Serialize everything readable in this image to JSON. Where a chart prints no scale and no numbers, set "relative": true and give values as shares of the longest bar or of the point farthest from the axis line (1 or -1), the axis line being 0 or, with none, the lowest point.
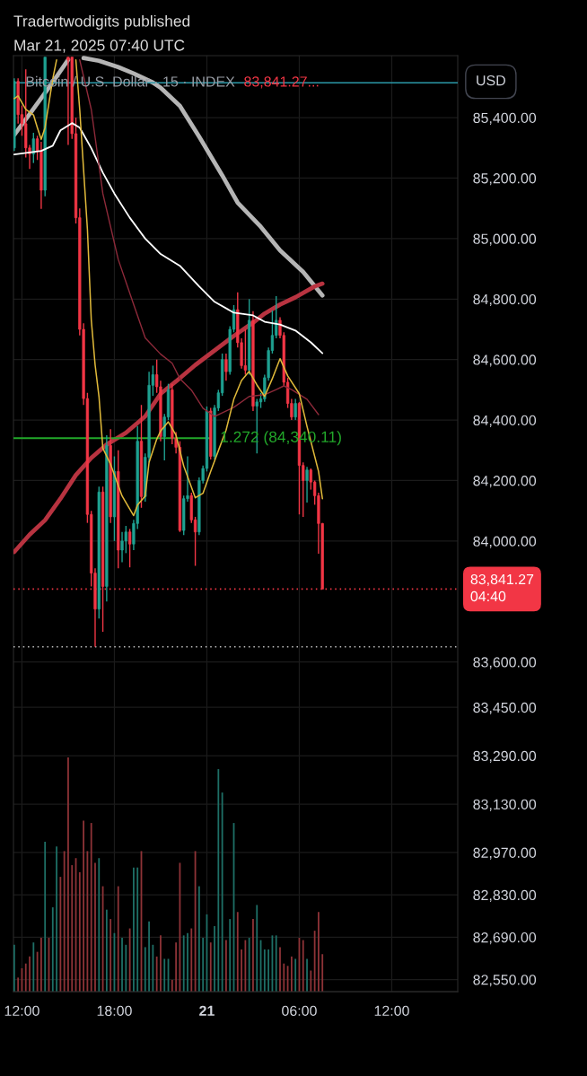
{
  "chart_data": [
    {
      "type": "candlestick",
      "title": "Tradertwodigits published",
      "subtitle": "Mar 21, 2025 07:40 UTC",
      "x": [
        "2025-03-20T11:30",
        "2025-03-20T11:45",
        "2025-03-20T12:00",
        "2025-03-20T12:15",
        "2025-03-20T12:30",
        "2025-03-20T12:45",
        "2025-03-20T13:00",
        "2025-03-20T13:15",
        "2025-03-20T13:30",
        "2025-03-20T15:00",
        "2025-03-20T15:15",
        "2025-03-20T15:30",
        "2025-03-20T15:45",
        "2025-03-20T16:00",
        "2025-03-20T16:15",
        "2025-03-20T16:30",
        "2025-03-20T16:45",
        "2025-03-20T17:00",
        "2025-03-20T17:15",
        "2025-03-20T17:30",
        "2025-03-20T17:45",
        "2025-03-20T18:00",
        "2025-03-20T18:15",
        "2025-03-20T18:30",
        "2025-03-20T18:45",
        "2025-03-20T19:00",
        "2025-03-20T19:15",
        "2025-03-20T19:30",
        "2025-03-20T19:45",
        "2025-03-20T20:00",
        "2025-03-20T20:15",
        "2025-03-20T20:30",
        "2025-03-20T20:45",
        "2025-03-20T21:00",
        "2025-03-20T21:15",
        "2025-03-20T21:30",
        "2025-03-20T21:45",
        "2025-03-20T22:00",
        "2025-03-20T22:15",
        "2025-03-20T22:30",
        "2025-03-20T22:45",
        "2025-03-20T23:00",
        "2025-03-20T23:15",
        "2025-03-20T23:30",
        "2025-03-20T23:45",
        "2025-03-21T00:00",
        "2025-03-21T00:15",
        "2025-03-21T00:30",
        "2025-03-21T00:45",
        "2025-03-21T01:00",
        "2025-03-21T01:15",
        "2025-03-21T01:30",
        "2025-03-21T01:45",
        "2025-03-21T02:00",
        "2025-03-21T02:15",
        "2025-03-21T02:30",
        "2025-03-21T02:45",
        "2025-03-21T03:00",
        "2025-03-21T03:15",
        "2025-03-21T03:30",
        "2025-03-21T03:45",
        "2025-03-21T04:00",
        "2025-03-21T04:15",
        "2025-03-21T04:30",
        "2025-03-21T04:45",
        "2025-03-21T05:00",
        "2025-03-21T05:15",
        "2025-03-21T05:30",
        "2025-03-21T05:45",
        "2025-03-21T06:00",
        "2025-03-21T06:15",
        "2025-03-21T06:30",
        "2025-03-21T06:45",
        "2025-03-21T07:00",
        "2025-03-21T07:15",
        "2025-03-21T07:30"
      ],
      "ohlc": [
        [
          85300,
          85530,
          85290,
          85520
        ],
        [
          85520,
          85530,
          85380,
          85410
        ],
        [
          85410,
          85440,
          85340,
          85380
        ],
        [
          85380,
          85560,
          85268,
          85300
        ],
        [
          85300,
          85310,
          85230,
          85280
        ],
        [
          85280,
          85350,
          85250,
          85330
        ],
        [
          85330,
          85340,
          85260,
          85290
        ],
        [
          85290,
          85320,
          85098,
          85160
        ],
        [
          85160,
          85600,
          85140,
          85600
        ],
        [
          85600,
          85600,
          85310,
          85590
        ],
        [
          85600,
          85600,
          85330,
          85347
        ],
        [
          85347,
          85400,
          85050,
          85069
        ],
        [
          85069,
          85100,
          84680,
          84700
        ],
        [
          84700,
          84720,
          84450,
          84471
        ],
        [
          84471,
          84490,
          84060,
          84088
        ],
        [
          84088,
          84100,
          83850,
          83894
        ],
        [
          83894,
          83910,
          83650,
          83775
        ],
        [
          83775,
          84180,
          83744,
          84162
        ],
        [
          84162,
          84180,
          83700,
          83850
        ],
        [
          83850,
          84350,
          83800,
          84316
        ],
        [
          84316,
          84370,
          84060,
          84080
        ],
        [
          84080,
          84280,
          84000,
          84230
        ],
        [
          84230,
          84300,
          83910,
          83970
        ],
        [
          83970,
          84030,
          83930,
          84000
        ],
        [
          84000,
          84050,
          83960,
          84030
        ],
        [
          84030,
          84040,
          83913,
          83990
        ],
        [
          83990,
          84070,
          83970,
          84058
        ],
        [
          84058,
          84380,
          84040,
          84330
        ],
        [
          84330,
          84450,
          84110,
          84147
        ],
        [
          84147,
          84290,
          84130,
          84277
        ],
        [
          84277,
          84560,
          84260,
          84515
        ],
        [
          84515,
          84580,
          84480,
          84550
        ],
        [
          84550,
          84600,
          84490,
          84510
        ],
        [
          84510,
          84530,
          84330,
          84345
        ],
        [
          84345,
          84420,
          84267,
          84410
        ],
        [
          84410,
          84520,
          84400,
          84500
        ],
        [
          84500,
          84520,
          84320,
          84340
        ],
        [
          84340,
          84360,
          84290,
          84310
        ],
        [
          84310,
          84330,
          84030,
          84035
        ],
        [
          84035,
          84150,
          84020,
          84140
        ],
        [
          84140,
          84280,
          84130,
          84150
        ],
        [
          84150,
          84160,
          84060,
          84070
        ],
        [
          84070,
          84080,
          83918,
          84030
        ],
        [
          84030,
          84210,
          84020,
          84200
        ],
        [
          84200,
          84250,
          84190,
          84240
        ],
        [
          84240,
          84445,
          84230,
          84430
        ],
        [
          84430,
          84440,
          84270,
          84280
        ],
        [
          84280,
          84450,
          84270,
          84440
        ],
        [
          84440,
          84500,
          84430,
          84490
        ],
        [
          84490,
          84620,
          84480,
          84600
        ],
        [
          84600,
          84620,
          84530,
          84560
        ],
        [
          84560,
          84710,
          84550,
          84700
        ],
        [
          84700,
          84780,
          84690,
          84765
        ],
        [
          84765,
          84822,
          84640,
          84656
        ],
        [
          84656,
          84670,
          84570,
          84580
        ],
        [
          84580,
          84700,
          84550,
          84565
        ],
        [
          84565,
          84800,
          84550,
          84730
        ],
        [
          84730,
          84760,
          84430,
          84446
        ],
        [
          84446,
          84470,
          84290,
          84460
        ],
        [
          84460,
          84490,
          84440,
          84470
        ],
        [
          84470,
          84550,
          84460,
          84540
        ],
        [
          84540,
          84640,
          84530,
          84630
        ],
        [
          84630,
          84762,
          84620,
          84680
        ],
        [
          84680,
          84810,
          84670,
          84730
        ],
        [
          84730,
          84740,
          84670,
          84680
        ],
        [
          84680,
          84690,
          84510,
          84525
        ],
        [
          84525,
          84540,
          84440,
          84455
        ],
        [
          84455,
          84470,
          84400,
          84410
        ],
        [
          84410,
          84470,
          84400,
          84455
        ],
        [
          84455,
          84460,
          84088,
          84250
        ],
        [
          84250,
          84260,
          84080,
          84200
        ],
        [
          84200,
          84245,
          84127,
          84235
        ],
        [
          84235,
          84240,
          84170,
          84195
        ],
        [
          84195,
          84200,
          84120,
          84150
        ],
        [
          84150,
          84160,
          83958,
          84058
        ],
        [
          84058,
          84060,
          83841.27,
          83841.27
        ]
      ],
      "colors": [
        "#1fa191",
        "#f23645",
        "#f23645",
        "#f23645",
        "#f23645",
        "#1fa191",
        "#f23645",
        "#f23645",
        "#1fa191",
        "#f23645",
        "#f23645",
        "#f23645",
        "#f23645",
        "#f23645",
        "#f23645",
        "#f23645",
        "#f23645",
        "#1fa191",
        "#f23645",
        "#1fa191",
        "#f23645",
        "#1fa191",
        "#f23645",
        "#1fa191",
        "#1fa191",
        "#f23645",
        "#1fa191",
        "#1fa191",
        "#f23645",
        "#1fa191",
        "#1fa191",
        "#1fa191",
        "#f23645",
        "#f23645",
        "#1fa191",
        "#1fa191",
        "#f23645",
        "#f23645",
        "#f23645",
        "#1fa191",
        "#1fa191",
        "#f23645",
        "#f23645",
        "#1fa191",
        "#1fa191",
        "#1fa191",
        "#f23645",
        "#1fa191",
        "#1fa191",
        "#1fa191",
        "#f23645",
        "#1fa191",
        "#1fa191",
        "#f23645",
        "#f23645",
        "#f23645",
        "#1fa191",
        "#f23645",
        "#1fa191",
        "#1fa191",
        "#1fa191",
        "#1fa191",
        "#1fa191",
        "#1fa191",
        "#f23645",
        "#f23645",
        "#f23645",
        "#f23645",
        "#1fa191",
        "#f23645",
        "#f23645",
        "#1fa191",
        "#f23645",
        "#f23645",
        "#f23645",
        "#f23645"
      ],
      "series": [
        {
          "type": "line",
          "color": "#b5b5b5",
          "x": [
            "2025-03-20T11:30",
            "2025-03-20T12:30",
            "2025-03-20T13:45",
            "2025-03-20T15:00",
            "2025-03-20T15:30",
            "2025-03-20T16:00",
            "2025-03-20T17:00",
            "2025-03-20T18:15",
            "2025-03-20T19:15",
            "2025-03-20T20:30",
            "2025-03-20T21:00",
            "2025-03-20T22:15",
            "2025-03-20T23:30",
            "2025-03-21T01:00",
            "2025-03-21T02:00",
            "2025-03-21T03:30",
            "2025-03-21T04:45",
            "2025-03-21T06:15",
            "2025-03-21T07:30"
          ],
          "values": [
            85343,
            85412,
            85499,
            85591,
            null,
            85597,
            85588,
            85567,
            85546,
            85516,
            85499,
            85439,
            85337,
            85209,
            85119,
            85039,
            84961,
            84890,
            84812
          ]
        },
        {
          "type": "line",
          "color": "#ffffff",
          "x": [
            "2025-03-20T11:30",
            "2025-03-20T13:15",
            "2025-03-20T14:00",
            "2025-03-20T14:30",
            "2025-03-20T15:15",
            "2025-03-20T15:45",
            "2025-03-20T16:30",
            "2025-03-20T17:15",
            "2025-03-20T18:00",
            "2025-03-20T19:00",
            "2025-03-20T20:00",
            "2025-03-20T21:00",
            "2025-03-20T22:15",
            "2025-03-20T23:30",
            "2025-03-21T00:30",
            "2025-03-21T01:45",
            "2025-03-21T03:00",
            "2025-03-21T03:45",
            "2025-03-21T04:45",
            "2025-03-21T05:45",
            "2025-03-21T06:45",
            "2025-03-21T07:30"
          ],
          "values": [
            85278,
            85290,
            85307,
            85358,
            85382,
            85367,
            85299,
            85218,
            85149,
            85069,
            85000,
            84949,
            84910,
            84842,
            84791,
            84755,
            84746,
            84725,
            84716,
            84696,
            84657,
            84621
          ]
        },
        {
          "type": "line",
          "color": "#8e2a3a",
          "x": [
            "2025-03-20T15:45",
            "2025-03-20T16:30",
            "2025-03-20T17:15",
            "2025-03-20T18:15",
            "2025-03-20T19:15",
            "2025-03-20T20:00",
            "2025-03-20T21:00",
            "2025-03-20T21:45",
            "2025-03-20T22:15",
            "2025-03-20T23:00",
            "2025-03-20T23:45",
            "2025-03-21T00:30",
            "2025-03-21T01:45",
            "2025-03-21T02:45",
            "2025-03-21T03:45",
            "2025-03-21T04:30",
            "2025-03-21T05:00",
            "2025-03-21T05:30",
            "2025-03-21T06:30",
            "2025-03-21T07:15"
          ],
          "values": [
            85591,
            85427,
            85149,
            84931,
            84782,
            84672,
            84618,
            84588,
            84537,
            84499,
            84439,
            84412,
            84442,
            84478,
            84484,
            84501,
            84513,
            84501,
            84469,
            84418
          ]
        },
        {
          "type": "line",
          "color": "#e0b93a",
          "x": [
            "2025-03-20T11:30",
            "2025-03-20T11:45",
            "2025-03-20T12:15",
            "2025-03-20T12:45",
            "2025-03-20T13:00",
            "2025-03-20T13:15",
            "2025-03-20T13:30",
            "2025-03-20T14:00",
            "2025-03-20T14:15",
            "2025-03-20T14:45",
            "2025-03-20T15:30",
            "2025-03-20T15:45",
            "2025-03-20T16:15",
            "2025-03-20T16:30",
            "2025-03-20T16:45",
            "2025-03-20T17:00",
            "2025-03-20T17:15",
            "2025-03-20T17:45",
            "2025-03-20T18:30",
            "2025-03-20T19:15",
            "2025-03-20T19:30",
            "2025-03-20T20:00",
            "2025-03-20T20:15",
            "2025-03-20T20:45",
            "2025-03-20T21:00",
            "2025-03-20T21:30",
            "2025-03-20T22:00",
            "2025-03-20T22:30",
            "2025-03-20T23:15",
            "2025-03-20T23:45",
            "2025-03-21T00:15",
            "2025-03-21T00:45",
            "2025-03-21T01:15",
            "2025-03-21T01:45",
            "2025-03-21T02:15",
            "2025-03-21T02:45",
            "2025-03-21T03:15",
            "2025-03-21T03:45",
            "2025-03-21T04:15",
            "2025-03-21T04:45",
            "2025-03-21T05:15",
            "2025-03-21T06:00",
            "2025-03-21T06:30",
            "2025-03-21T07:15",
            "2025-03-21T07:30"
          ],
          "values": [
            85463,
            85472,
            85427,
            85409,
            85367,
            85328,
            85367,
            85528,
            85591,
            null,
            85591,
            85427,
            85030,
            84731,
            84582,
            84478,
            84307,
            84254,
            84149,
            84084,
            84119,
            84149,
            84260,
            84337,
            84364,
            84394,
            84350,
            84248,
            84143,
            84158,
            84230,
            84299,
            84367,
            84469,
            84531,
            84561,
            84516,
            84478,
            84537,
            84603,
            84546,
            84487,
            84379,
            84230,
            84140
          ]
        },
        {
          "type": "line",
          "color": "#b83340",
          "x": [
            "2025-03-20T11:30",
            "2025-03-20T12:30",
            "2025-03-20T13:30",
            "2025-03-20T14:30",
            "2025-03-20T15:30",
            "2025-03-20T16:30",
            "2025-03-20T17:30",
            "2025-03-20T18:45",
            "2025-03-20T20:00",
            "2025-03-20T21:00",
            "2025-03-20T22:00",
            "2025-03-20T23:15",
            "2025-03-21T01:45",
            "2025-03-21T03:00",
            "2025-03-21T03:45",
            "2025-03-21T04:45",
            "2025-03-21T05:45",
            "2025-03-21T07:00",
            "2025-03-21T07:30"
          ],
          "values": [
            83964,
            84021,
            84069,
            84140,
            84218,
            84275,
            84319,
            84358,
            84412,
            84487,
            84528,
            84582,
            84678,
            84722,
            84752,
            84782,
            84806,
            84842,
            84851
          ]
        }
      ],
      "xlim": [
        "2025-03-20T11:27",
        "2025-03-21T16:17"
      ],
      "xticks": [
        {
          "value": "2025-03-20T12:00",
          "label": "12:00"
        },
        {
          "value": "2025-03-20T18:00",
          "label": "18:00"
        },
        {
          "value": "2025-03-21T00:00",
          "label": "21"
        },
        {
          "value": "2025-03-21T06:00",
          "label": "06:00"
        },
        {
          "value": "2025-03-21T12:00",
          "label": "12:00"
        }
      ],
      "ylim": [
        82510,
        85605
      ],
      "yticks": [
        {
          "value": 85400,
          "label": "85,400.00"
        },
        {
          "value": 85200,
          "label": "85,200.00"
        },
        {
          "value": 85000,
          "label": "85,000.00"
        },
        {
          "value": 84800,
          "label": "84,800.00"
        },
        {
          "value": 84600,
          "label": "84,600.00"
        },
        {
          "value": 84400,
          "label": "84,400.00"
        },
        {
          "value": 84200,
          "label": "84,200.00"
        },
        {
          "value": 84000,
          "label": "84,000.00"
        },
        {
          "value": 83600,
          "label": "83,600.00"
        },
        {
          "value": 83450,
          "label": "83,450.00"
        },
        {
          "value": 83290,
          "label": "83,290.00"
        },
        {
          "value": 83130,
          "label": "83,130.00"
        },
        {
          "value": 82970,
          "label": "82,970.00"
        },
        {
          "value": 82830,
          "label": "82,830.00"
        },
        {
          "value": 82690,
          "label": "82,690.00"
        },
        {
          "value": 82550,
          "label": "82,550.00"
        }
      ],
      "grid": true,
      "ref_lines": [
        {
          "axis": "y",
          "value": 85515,
          "color": "#2b98a8",
          "line_style": "solid"
        },
        {
          "axis": "y",
          "value": 84340.11,
          "label": "1.272 (84,340.11)",
          "color": "#22a82a",
          "line_style": "solid"
        },
        {
          "axis": "y",
          "value": 83841.27,
          "label": "83,841.27\n04:40",
          "color": "#f23645",
          "line_style": "dotted"
        },
        {
          "axis": "y",
          "value": 83650,
          "color": "#bdbdbd",
          "line_style": "dotted"
        }
      ],
      "annotations": [
        "Bitcoin / U.S. Dollar · 15 · INDEX",
        "83,841.27...",
        "USD"
      ]
    },
    {
      "type": "bar",
      "relative": true,
      "x": [
        "2025-03-20T11:30",
        "2025-03-20T11:45",
        "2025-03-20T12:00",
        "2025-03-20T12:15",
        "2025-03-20T12:30",
        "2025-03-20T12:45",
        "2025-03-20T13:00",
        "2025-03-20T13:15",
        "2025-03-20T13:30",
        "2025-03-20T13:45",
        "2025-03-20T14:00",
        "2025-03-20T14:15",
        "2025-03-20T14:30",
        "2025-03-20T14:45",
        "2025-03-20T15:00",
        "2025-03-20T15:15",
        "2025-03-20T15:30",
        "2025-03-20T15:45",
        "2025-03-20T16:00",
        "2025-03-20T16:15",
        "2025-03-20T16:30",
        "2025-03-20T16:45",
        "2025-03-20T17:00",
        "2025-03-20T17:15",
        "2025-03-20T17:30",
        "2025-03-20T17:45",
        "2025-03-20T18:00",
        "2025-03-20T18:15",
        "2025-03-20T18:30",
        "2025-03-20T18:45",
        "2025-03-20T19:00",
        "2025-03-20T19:15",
        "2025-03-20T19:30",
        "2025-03-20T19:45",
        "2025-03-20T20:00",
        "2025-03-20T20:15",
        "2025-03-20T20:30",
        "2025-03-20T20:45",
        "2025-03-20T21:00",
        "2025-03-20T21:15",
        "2025-03-20T21:30",
        "2025-03-20T21:45",
        "2025-03-20T22:00",
        "2025-03-20T22:15",
        "2025-03-20T22:30",
        "2025-03-20T22:45",
        "2025-03-20T23:00",
        "2025-03-20T23:15",
        "2025-03-20T23:30",
        "2025-03-20T23:45",
        "2025-03-21T00:00",
        "2025-03-21T00:15",
        "2025-03-21T00:30",
        "2025-03-21T00:45",
        "2025-03-21T01:00",
        "2025-03-21T01:15",
        "2025-03-21T01:30",
        "2025-03-21T01:45",
        "2025-03-21T02:00",
        "2025-03-21T02:15",
        "2025-03-21T02:30",
        "2025-03-21T02:45",
        "2025-03-21T03:00",
        "2025-03-21T03:15",
        "2025-03-21T03:30",
        "2025-03-21T03:45",
        "2025-03-21T04:00",
        "2025-03-21T04:15",
        "2025-03-21T04:30",
        "2025-03-21T04:45",
        "2025-03-21T05:00",
        "2025-03-21T05:15",
        "2025-03-21T05:30",
        "2025-03-21T05:45",
        "2025-03-21T06:00",
        "2025-03-21T06:15",
        "2025-03-21T06:30",
        "2025-03-21T06:45",
        "2025-03-21T07:00",
        "2025-03-21T07:15",
        "2025-03-21T07:30"
      ],
      "values": [
        0.2,
        0.06,
        0.1,
        0.12,
        0.15,
        0.21,
        0.17,
        0.23,
        0.64,
        0.23,
        0.36,
        0.62,
        0.49,
        0.6,
        1.0,
        0.54,
        0.57,
        0.51,
        0.73,
        0.6,
        0.72,
        0.55,
        0.57,
        0.45,
        0.35,
        0.31,
        0.25,
        0.45,
        0.23,
        0.2,
        0.27,
        0.53,
        0.53,
        0.6,
        0.19,
        0.3,
        0.2,
        0.15,
        0.24,
        0.14,
        0.14,
        0.05,
        0.21,
        0.55,
        0.24,
        0.25,
        0.27,
        0.6,
        0.45,
        0.23,
        0.33,
        0.21,
        0.28,
        0.95,
        0.85,
        0.22,
        0.31,
        0.72,
        0.34,
        0.18,
        0.22,
        0.23,
        0.31,
        0.37,
        0.22,
        0.18,
        0.18,
        0.24,
        0.24,
        0.19,
        0.12,
        0.11,
        0.15,
        0.14,
        0.23,
        0.22,
        0.14,
        0.09,
        0.26,
        0.34,
        0.16
      ],
      "colors": [
        "#1e6f66",
        "#8e3337",
        "#8e3337",
        "#8e3337",
        "#8e3337",
        "#1e6f66",
        "#8e3337",
        "#8e3337",
        "#1e6f66",
        "#8e3337",
        "#1e6f66",
        "#1e6f66",
        "#8e3337",
        "#8e3337",
        "#8e3337",
        "#8e3337",
        "#8e3337",
        "#8e3337",
        "#8e3337",
        "#8e3337",
        "#8e3337",
        "#8e3337",
        "#1e6f66",
        "#8e3337",
        "#1e6f66",
        "#8e3337",
        "#1e6f66",
        "#8e3337",
        "#1e6f66",
        "#1e6f66",
        "#8e3337",
        "#1e6f66",
        "#1e6f66",
        "#8e3337",
        "#1e6f66",
        "#1e6f66",
        "#1e6f66",
        "#8e3337",
        "#8e3337",
        "#1e6f66",
        "#1e6f66",
        "#8e3337",
        "#8e3337",
        "#8e3337",
        "#1e6f66",
        "#1e6f66",
        "#8e3337",
        "#8e3337",
        "#1e6f66",
        "#1e6f66",
        "#1e6f66",
        "#8e3337",
        "#1e6f66",
        "#1e6f66",
        "#1e6f66",
        "#8e3337",
        "#1e6f66",
        "#1e6f66",
        "#8e3337",
        "#8e3337",
        "#8e3337",
        "#1e6f66",
        "#8e3337",
        "#1e6f66",
        "#1e6f66",
        "#1e6f66",
        "#1e6f66",
        "#1e6f66",
        "#1e6f66",
        "#8e3337",
        "#8e3337",
        "#8e3337",
        "#8e3337",
        "#1e6f66",
        "#8e3337",
        "#8e3337",
        "#1e6f66",
        "#8e3337",
        "#8e3337",
        "#8e3337",
        "#8e3337"
      ],
      "xlim": [
        "2025-03-20T11:27",
        "2025-03-21T16:17"
      ]
    }
  ]
}
